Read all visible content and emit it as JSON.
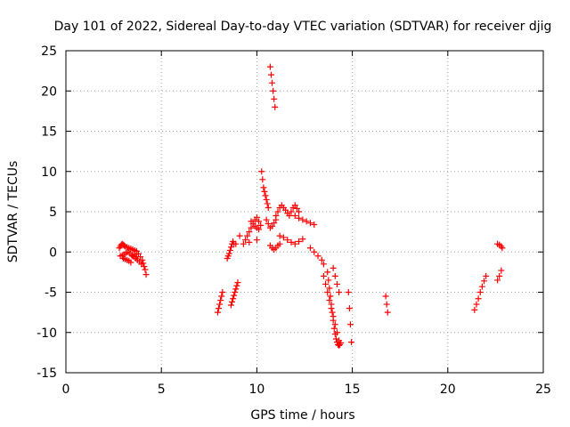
{
  "chart_data": {
    "type": "scatter",
    "title": "Day 101 of 2022, Sidereal Day-to-day VTEC variation (SDTVAR) for receiver djig",
    "xlabel": "GPS time / hours",
    "ylabel": "SDTVAR / TECUs",
    "xlim": [
      0,
      25
    ],
    "ylim": [
      -15,
      25
    ],
    "xticks": [
      "0",
      "5",
      "10",
      "15",
      "20",
      "25"
    ],
    "yticks": [
      "-15",
      "-10",
      "-5",
      "0",
      "5",
      "10",
      "15",
      "20",
      "25"
    ],
    "grid": true,
    "legend": "none",
    "marker": "+",
    "color": "#ff0000",
    "series": [
      {
        "x": [
          2.8,
          2.85,
          2.9,
          2.95,
          3.0,
          3.05,
          3.1,
          3.2,
          3.3,
          3.4,
          3.5,
          3.6,
          3.7,
          3.8,
          3.9,
          4.0,
          4.05,
          4.1,
          4.15,
          4.2,
          2.85,
          2.95,
          3.05,
          3.15,
          3.25,
          3.35,
          3.45,
          3.55,
          3.65,
          3.75,
          3.85,
          3.95,
          3.0,
          3.1,
          3.2,
          3.3,
          3.4,
          3.5,
          3.6,
          3.7,
          7.95,
          8.0,
          8.05,
          8.1,
          8.15,
          8.2,
          8.45,
          8.5,
          8.55,
          8.6,
          8.65,
          8.7,
          8.75,
          8.8,
          8.65,
          8.7,
          8.75,
          8.8,
          8.85,
          8.9,
          8.95,
          9.0,
          8.9,
          9.1,
          9.4,
          9.5,
          9.6,
          9.7,
          9.8,
          9.9,
          10.0,
          10.1,
          10.2,
          9.7,
          9.8,
          9.9,
          10.0,
          10.1,
          9.3,
          9.6,
          10.0,
          10.25,
          10.3,
          10.35,
          10.4,
          10.45,
          10.5,
          10.55,
          10.6,
          10.5,
          10.6,
          10.7,
          10.8,
          10.9,
          11.0,
          10.7,
          10.75,
          10.8,
          10.85,
          10.9,
          10.95,
          10.7,
          10.8,
          10.9,
          11.0,
          11.1,
          11.2,
          11.0,
          11.1,
          11.2,
          11.3,
          11.4,
          11.5,
          11.6,
          11.7,
          11.8,
          11.9,
          12.0,
          12.1,
          12.2,
          11.2,
          11.4,
          11.6,
          11.8,
          12.0,
          12.2,
          12.4,
          12.0,
          12.2,
          12.4,
          12.6,
          12.8,
          13.0,
          12.8,
          13.0,
          13.2,
          13.4,
          13.5,
          13.5,
          13.6,
          13.7,
          13.8,
          13.9,
          14.0,
          14.1,
          14.2,
          14.3,
          13.7,
          13.75,
          13.8,
          13.85,
          13.9,
          13.95,
          14.0,
          14.05,
          14.1,
          14.15,
          14.2,
          14.25,
          14.3,
          14.35,
          14.4,
          14.0,
          14.1,
          14.2,
          14.3,
          14.8,
          14.85,
          14.9,
          14.95,
          16.75,
          16.8,
          16.85,
          21.4,
          21.5,
          21.6,
          21.7,
          21.8,
          21.9,
          22.0,
          22.6,
          22.7,
          22.8,
          22.85,
          22.6,
          22.7,
          22.8
        ],
        "y": [
          0.5,
          0.7,
          0.9,
          1.0,
          0.9,
          0.8,
          0.7,
          0.6,
          0.5,
          0.4,
          0.3,
          0.2,
          0.1,
          -0.2,
          -0.6,
          -1.0,
          -1.4,
          -1.8,
          -2.2,
          -2.8,
          -0.5,
          -0.4,
          -0.3,
          -0.1,
          0.0,
          -0.2,
          -0.4,
          -0.6,
          -0.8,
          -1.0,
          -1.2,
          -1.5,
          -0.8,
          -0.9,
          -1.0,
          -1.1,
          -1.3,
          -0.5,
          -0.3,
          -0.6,
          -7.5,
          -7.0,
          -6.5,
          -6.0,
          -5.5,
          -5.0,
          -0.8,
          -0.5,
          -0.2,
          0.2,
          0.6,
          1.0,
          1.3,
          1.0,
          -6.6,
          -6.2,
          -5.8,
          -5.4,
          -5.0,
          -4.6,
          -4.2,
          -3.8,
          1.0,
          2.0,
          1.5,
          2.0,
          2.5,
          3.0,
          3.5,
          4.0,
          4.3,
          3.8,
          3.3,
          3.8,
          3.5,
          3.2,
          3.0,
          2.8,
          1.0,
          1.2,
          1.5,
          10.0,
          9.0,
          8.0,
          7.5,
          7.0,
          6.5,
          6.0,
          5.5,
          4.0,
          3.5,
          3.0,
          3.2,
          3.6,
          4.0,
          23.0,
          22.0,
          21.0,
          20.0,
          19.0,
          18.0,
          0.8,
          0.5,
          0.3,
          0.5,
          0.8,
          1.0,
          4.5,
          5.0,
          5.5,
          5.8,
          5.5,
          5.2,
          4.8,
          4.5,
          5.0,
          5.5,
          5.8,
          5.4,
          5.0,
          2.0,
          1.8,
          1.5,
          1.2,
          1.0,
          1.3,
          1.6,
          4.5,
          4.2,
          4.0,
          3.8,
          3.6,
          3.4,
          0.5,
          0.0,
          -0.5,
          -1.0,
          -1.5,
          -3.0,
          -4.0,
          -5.0,
          -6.0,
          -7.0,
          -8.0,
          -9.0,
          -10.0,
          -11.0,
          -2.5,
          -3.5,
          -4.5,
          -5.5,
          -6.5,
          -7.5,
          -8.5,
          -9.5,
          -10.2,
          -10.8,
          -11.2,
          -11.5,
          -11.6,
          -11.5,
          -11.3,
          -2.0,
          -3.0,
          -4.0,
          -5.0,
          -5.0,
          -7.0,
          -9.0,
          -11.2,
          -5.5,
          -6.5,
          -7.5,
          -7.2,
          -6.5,
          -5.8,
          -5.0,
          -4.3,
          -3.6,
          -3.0,
          1.0,
          0.9,
          0.7,
          0.5,
          -3.5,
          -3.0,
          -2.3
        ]
      }
    ]
  }
}
